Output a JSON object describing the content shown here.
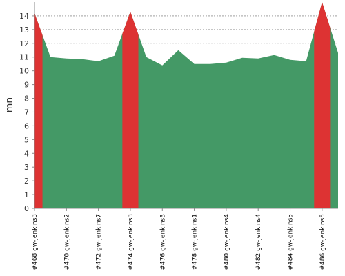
{
  "chart_data": {
    "type": "area",
    "y_label": "mn",
    "categories": [
      "#468 gw-jenkins3",
      null,
      "#470 gw-jenkins2",
      null,
      "#472 gw-jenkins7",
      null,
      "#474 gw-jenkins3",
      null,
      "#476 gw-jenkins3",
      null,
      "#478 gw-jenkins1",
      null,
      "#480 gw-jenkins4",
      null,
      "#482 gw-jenkins4",
      null,
      "#484 gw-jenkins5",
      null,
      "#486 gw-jenkins5",
      null
    ],
    "values": [
      14.2,
      11.0,
      10.9,
      10.85,
      10.7,
      11.1,
      14.3,
      11.0,
      10.4,
      11.5,
      10.5,
      10.5,
      10.6,
      10.95,
      10.9,
      11.15,
      10.8,
      10.7,
      15,
      11.3
    ],
    "color": "#449966",
    "point_colors": [
      "#dd3333",
      "#449966",
      "#449966",
      "#449966",
      "#449966",
      "#449966",
      "#dd3333",
      "#449966",
      "#449966",
      "#449966",
      "#449966",
      "#449966",
      "#449966",
      "#449966",
      "#449966",
      "#449966",
      "#449966",
      "#449966",
      "#dd3333",
      "#449966"
    ],
    "ylim": [
      0,
      15
    ],
    "yticks": [
      0,
      1,
      2,
      3,
      4,
      5,
      6,
      7,
      8,
      9,
      10,
      11,
      12,
      13,
      14
    ],
    "grid": true
  }
}
